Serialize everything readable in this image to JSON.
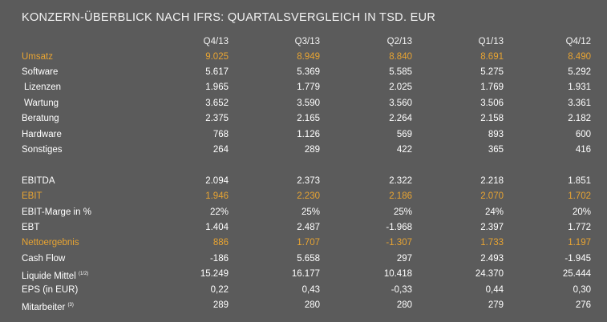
{
  "title": "KONZERN-ÜBERBLICK NACH IFRS: QUARTALSVERGLEICH IN TSD. EUR",
  "columns": [
    "Q4/13",
    "Q3/13",
    "Q2/13",
    "Q1/13",
    "Q4/12"
  ],
  "colors": {
    "background": "#5b5b5b",
    "text": "#ffffff",
    "highlight": "#e8a432"
  },
  "rows": [
    {
      "label": "Umsatz",
      "values": [
        "9.025",
        "8.949",
        "8.840",
        "8.691",
        "8.490"
      ],
      "highlight": true
    },
    {
      "label": "Software",
      "values": [
        "5.617",
        "5.369",
        "5.585",
        "5.275",
        "5.292"
      ]
    },
    {
      "label": "Lizenzen",
      "values": [
        "1.965",
        "1.779",
        "2.025",
        "1.769",
        "1.931"
      ],
      "indent": true
    },
    {
      "label": "Wartung",
      "values": [
        "3.652",
        "3.590",
        "3.560",
        "3.506",
        "3.361"
      ],
      "indent": true
    },
    {
      "label": "Beratung",
      "values": [
        "2.375",
        "2.165",
        "2.264",
        "2.158",
        "2.182"
      ]
    },
    {
      "label": "Hardware",
      "values": [
        "768",
        "1.126",
        "569",
        "893",
        "600"
      ]
    },
    {
      "label": "Sonstiges",
      "values": [
        "264",
        "289",
        "422",
        "365",
        "416"
      ]
    },
    {
      "label": "EBITDA",
      "values": [
        "2.094",
        "2.373",
        "2.322",
        "2.218",
        "1.851"
      ]
    },
    {
      "label": "EBIT",
      "values": [
        "1.946",
        "2.230",
        "2.186",
        "2.070",
        "1.702"
      ],
      "highlight": true
    },
    {
      "label": "EBIT-Marge in %",
      "values": [
        "22%",
        "25%",
        "25%",
        "24%",
        "20%"
      ]
    },
    {
      "label": "EBT",
      "values": [
        "1.404",
        "2.487",
        "-1.968",
        "2.397",
        "1.772"
      ]
    },
    {
      "label": "Nettoergebnis",
      "values": [
        "886",
        "1.707",
        "-1.307",
        "1.733",
        "1.197"
      ],
      "highlight": true
    },
    {
      "label": "Cash Flow",
      "values": [
        "-186",
        "5.658",
        "297",
        "2.493",
        "-1.945"
      ]
    },
    {
      "label": "Liquide Mittel",
      "sup": "(1/2)",
      "values": [
        "15.249",
        "16.177",
        "10.418",
        "24.370",
        "25.444"
      ]
    },
    {
      "label": "EPS (in EUR)",
      "values": [
        "0,22",
        "0,43",
        "-0,33",
        "0,44",
        "0,30"
      ]
    },
    {
      "label": "Mitarbeiter",
      "sup": "(3)",
      "values": [
        "289",
        "280",
        "280",
        "279",
        "276"
      ]
    }
  ]
}
